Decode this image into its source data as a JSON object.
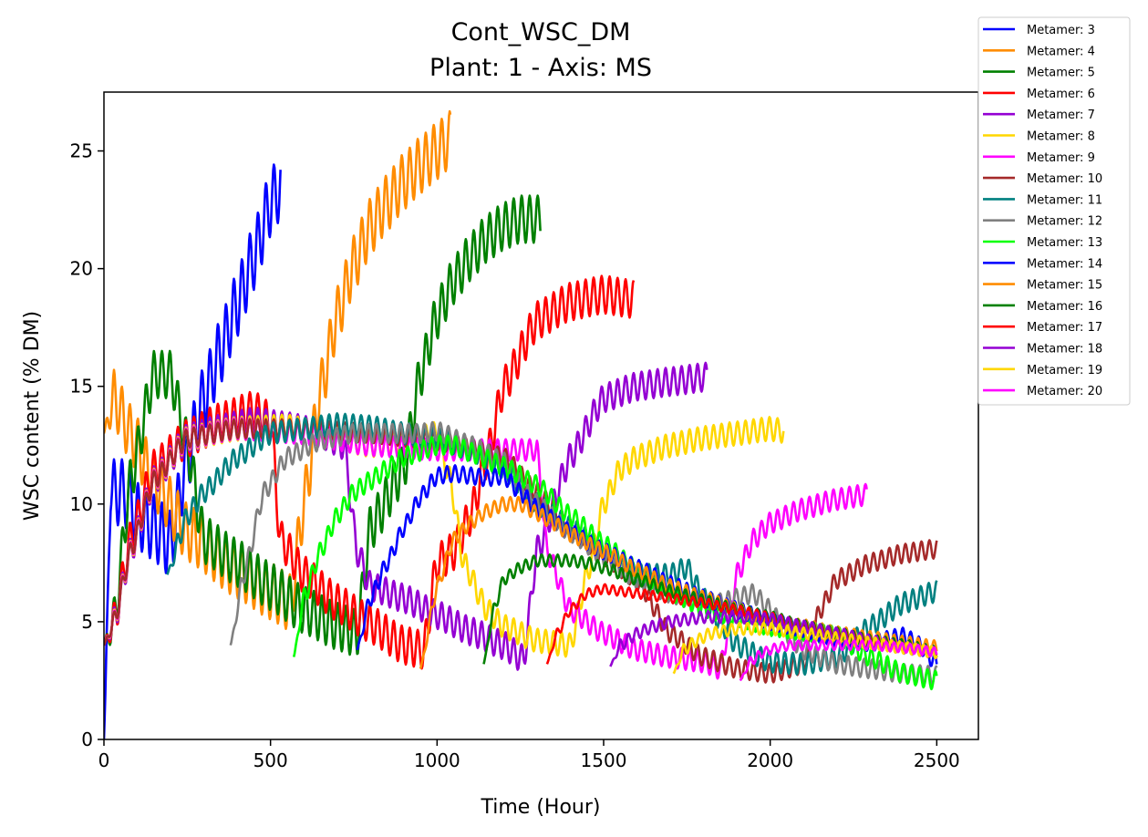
{
  "chart_data": {
    "type": "line",
    "title": "Cont_WSC_DM",
    "subtitle": "Plant: 1 - Axis: MS",
    "xlabel": "Time (Hour)",
    "ylabel": "WSC content (% DM)",
    "xlim": [
      0,
      2625
    ],
    "ylim": [
      0,
      27.5
    ],
    "xticks": [
      0,
      500,
      1000,
      1500,
      2000,
      2500
    ],
    "yticks": [
      0,
      5,
      10,
      15,
      20,
      25
    ],
    "grid": false,
    "legend_position": "outside top-right",
    "series": [
      {
        "name": "Metamer: 3",
        "color": "#0000ff",
        "x": [
          0,
          20,
          60,
          100,
          150,
          200,
          250,
          300,
          350,
          400,
          450,
          500,
          530
        ],
        "y": [
          0,
          10.5,
          10.5,
          9.5,
          9,
          8.3,
          12,
          14.5,
          16.5,
          18.5,
          20.5,
          22.8,
          23.5
        ],
        "amp": 1.4
      },
      {
        "name": "Metamer: 4",
        "color": "#ff8c00",
        "x": [
          0,
          30,
          80,
          150,
          250,
          400,
          500,
          560,
          600,
          650,
          700,
          750,
          800,
          850,
          900,
          950,
          1000,
          1040
        ],
        "y": [
          13,
          14.5,
          13,
          11,
          8.8,
          7.2,
          6.3,
          5.8,
          10,
          14.8,
          18,
          20.2,
          21.8,
          22.8,
          23.7,
          24.4,
          25,
          25.5
        ],
        "amp": 1.2
      },
      {
        "name": "Metamer: 5",
        "color": "#008000",
        "x": [
          0,
          30,
          80,
          150,
          200,
          250,
          300,
          400,
          500,
          600,
          700,
          760,
          800,
          900,
          950,
          1000,
          1050,
          1100,
          1150,
          1200,
          1250,
          1310
        ],
        "y": [
          4,
          5,
          11,
          15.5,
          15.5,
          12.5,
          8.5,
          7.5,
          6.5,
          5.5,
          4.8,
          4.5,
          9,
          11.5,
          15.5,
          18,
          19.5,
          20.5,
          21.3,
          21.8,
          22.1,
          22.1
        ],
        "amp": 1.0
      },
      {
        "name": "Metamer: 6",
        "color": "#ff0000",
        "x": [
          0,
          30,
          80,
          150,
          250,
          350,
          450,
          500,
          530,
          600,
          700,
          800,
          900,
          960,
          1000,
          1050,
          1100,
          1150,
          1200,
          1300,
          1400,
          1500,
          1590
        ],
        "y": [
          4,
          5,
          8.5,
          11.5,
          12.8,
          13.5,
          14,
          13.5,
          8.5,
          7,
          5.8,
          4.9,
          4,
          3.8,
          7.5,
          8,
          9.5,
          12,
          15,
          17.8,
          18.6,
          18.9,
          18.7
        ],
        "amp": 0.8
      },
      {
        "name": "Metamer: 7",
        "color": "#9400d3",
        "x": [
          0,
          30,
          80,
          150,
          250,
          350,
          450,
          550,
          650,
          720,
          760,
          800,
          900,
          1000,
          1100,
          1200,
          1260,
          1300,
          1400,
          1500,
          1600,
          1700,
          1810
        ],
        "y": [
          4,
          5,
          8,
          11,
          12.8,
          13.2,
          13.5,
          13.3,
          13,
          12.5,
          8,
          6.5,
          6,
          5.3,
          4.6,
          4,
          3.4,
          8,
          12,
          14.5,
          15,
          15.2,
          15.4
        ],
        "amp": 0.6
      },
      {
        "name": "Metamer: 8",
        "color": "#ffd700",
        "x": [
          0,
          30,
          80,
          150,
          250,
          400,
          550,
          700,
          800,
          900,
          1000,
          1040,
          1080,
          1150,
          1200,
          1300,
          1400,
          1450,
          1500,
          1550,
          1600,
          1700,
          1800,
          1900,
          2000,
          2040
        ],
        "y": [
          4,
          5,
          8,
          11,
          12.8,
          13.2,
          13.3,
          12.8,
          12.5,
          12.6,
          13,
          11,
          7.5,
          5.5,
          4.8,
          4.2,
          4,
          7,
          10,
          11.5,
          12,
          12.5,
          12.8,
          13,
          13.2,
          13.1
        ],
        "amp": 0.5
      },
      {
        "name": "Metamer: 9",
        "color": "#ff00ff",
        "x": [
          0,
          30,
          80,
          150,
          250,
          400,
          600,
          800,
          1000,
          1200,
          1300,
          1330,
          1400,
          1500,
          1600,
          1700,
          1800,
          1850,
          1900,
          1950,
          2000,
          2100,
          2200,
          2290
        ],
        "y": [
          4,
          5,
          8,
          11,
          12.8,
          13.2,
          13,
          12.5,
          12.3,
          12.3,
          12.3,
          8,
          5.5,
          4.5,
          3.8,
          3.5,
          3.3,
          3,
          7,
          8.5,
          9.2,
          9.8,
          10.2,
          10.4
        ],
        "amp": 0.45
      },
      {
        "name": "Metamer: 10",
        "color": "#a52a2a",
        "x": [
          0,
          30,
          80,
          150,
          250,
          400,
          600,
          800,
          1000,
          1200,
          1300,
          1400,
          1500,
          1600,
          1700,
          1800,
          1900,
          2000,
          2100,
          2150,
          2200,
          2300,
          2400,
          2500
        ],
        "y": [
          4,
          5,
          8,
          11,
          12.8,
          13.2,
          13.2,
          13,
          12.7,
          12,
          10.5,
          9,
          7.8,
          6.8,
          4.5,
          3.5,
          3,
          2.8,
          3.2,
          5.5,
          6.8,
          7.5,
          7.9,
          8.1
        ],
        "amp": 0.4
      },
      {
        "name": "Metamer: 11",
        "color": "#008080",
        "x": [
          190,
          250,
          300,
          400,
          500,
          600,
          700,
          800,
          900,
          1000,
          1100,
          1200,
          1300,
          1400,
          1500,
          1600,
          1700,
          1750,
          1800,
          1850,
          1900,
          2000,
          2100,
          2200,
          2300,
          2400,
          2500
        ],
        "y": [
          7,
          9.5,
          10.5,
          12,
          13,
          13.2,
          13.4,
          13.3,
          13,
          12.8,
          12.3,
          11.5,
          10,
          9,
          8,
          7,
          7,
          7.3,
          6,
          5,
          4,
          3.3,
          3.2,
          3.5,
          4.8,
          5.8,
          6.3
        ],
        "amp": 0.45
      },
      {
        "name": "Metamer: 12",
        "color": "#808080",
        "x": [
          380,
          420,
          480,
          550,
          650,
          750,
          850,
          950,
          1000,
          1100,
          1200,
          1300,
          1400,
          1500,
          1600,
          1700,
          1800,
          1850,
          1900,
          1950,
          2000,
          2050,
          2100,
          2200,
          2300,
          2400,
          2500
        ],
        "y": [
          4,
          7,
          10.5,
          12,
          12.7,
          13,
          13,
          13,
          13.1,
          12.5,
          11.8,
          10,
          8.8,
          7.8,
          6.8,
          6.2,
          5.8,
          5.8,
          6,
          6.2,
          5.5,
          4.5,
          3.8,
          3.2,
          3,
          2.8,
          2.7
        ],
        "amp": 0.4
      },
      {
        "name": "Metamer: 13",
        "color": "#00ff00",
        "x": [
          570,
          600,
          650,
          700,
          750,
          800,
          850,
          900,
          1000,
          1050,
          1100,
          1200,
          1300,
          1400,
          1500,
          1600,
          1700,
          1800,
          1900,
          2000,
          2100,
          2200,
          2300,
          2400,
          2500
        ],
        "y": [
          3.5,
          6,
          8,
          9.5,
          10.5,
          11,
          11.5,
          12,
          12.5,
          12.5,
          12.2,
          11.6,
          10.8,
          9.5,
          8.3,
          7.2,
          6.3,
          5.6,
          5.2,
          4.8,
          4.6,
          4.4,
          3.5,
          2.8,
          2.5
        ],
        "amp": 0.4
      },
      {
        "name": "Metamer: 14",
        "color": "#0000ff",
        "x": [
          760,
          800,
          850,
          900,
          950,
          1000,
          1050,
          1100,
          1150,
          1200,
          1250,
          1300,
          1400,
          1500,
          1600,
          1700,
          1800,
          1900,
          2000,
          2100,
          2200,
          2300,
          2400,
          2450,
          2500
        ],
        "y": [
          3.8,
          6,
          7.5,
          9,
          10.3,
          11.2,
          11.3,
          11.2,
          11.1,
          11.2,
          10.5,
          9.8,
          8.8,
          8,
          7.3,
          6.6,
          6,
          5.5,
          5,
          4.7,
          4.3,
          4.1,
          4.4,
          4,
          3.2
        ],
        "amp": 0.35
      },
      {
        "name": "Metamer: 15",
        "color": "#ff8c00",
        "x": [
          950,
          1000,
          1050,
          1100,
          1150,
          1200,
          1250,
          1300,
          1350,
          1400,
          1500,
          1600,
          1700,
          1800,
          1900,
          2000,
          2100,
          2200,
          2300,
          2400,
          2500
        ],
        "y": [
          3,
          6.5,
          8.5,
          9.2,
          9.7,
          10,
          10,
          9.6,
          9.2,
          8.7,
          8,
          7.2,
          6.5,
          6,
          5.5,
          5,
          4.8,
          4.5,
          4.3,
          4.1,
          3.9
        ],
        "amp": 0.3
      },
      {
        "name": "Metamer: 16",
        "color": "#008000",
        "x": [
          1140,
          1170,
          1200,
          1250,
          1300,
          1350,
          1400,
          1450,
          1500,
          1600,
          1700,
          1800,
          1900,
          2000,
          2100,
          2200,
          2300,
          2400,
          2500
        ],
        "y": [
          3.2,
          5.5,
          6.8,
          7.3,
          7.6,
          7.6,
          7.6,
          7.5,
          7.3,
          6.8,
          6.3,
          5.9,
          5.5,
          5.2,
          4.8,
          4.5,
          4.2,
          4,
          3.7
        ],
        "amp": 0.25
      },
      {
        "name": "Metamer: 17",
        "color": "#ff0000",
        "x": [
          1330,
          1360,
          1400,
          1450,
          1500,
          1550,
          1600,
          1700,
          1800,
          1900,
          2000,
          2100,
          2200,
          2300,
          2400,
          2500
        ],
        "y": [
          3.2,
          4.5,
          5.5,
          6.2,
          6.4,
          6.3,
          6.2,
          6,
          5.8,
          5.5,
          5.2,
          4.8,
          4.5,
          4.2,
          3.9,
          3.7
        ],
        "amp": 0.2
      },
      {
        "name": "Metamer: 18",
        "color": "#9400d3",
        "x": [
          1520,
          1550,
          1600,
          1650,
          1700,
          1750,
          1800,
          1850,
          1900,
          2000,
          2100,
          2200,
          2300,
          2400,
          2500
        ],
        "y": [
          3.1,
          4,
          4.5,
          4.8,
          5,
          5.1,
          5.2,
          5.2,
          5.2,
          5.1,
          4.8,
          4.5,
          4.2,
          3.9,
          3.7
        ],
        "amp": 0.25
      },
      {
        "name": "Metamer: 19",
        "color": "#ffd700",
        "x": [
          1710,
          1740,
          1780,
          1820,
          1860,
          1900,
          1950,
          2000,
          2100,
          2200,
          2300,
          2400,
          2500
        ],
        "y": [
          2.8,
          3.8,
          4.2,
          4.5,
          4.6,
          4.7,
          4.7,
          4.7,
          4.5,
          4.3,
          4.1,
          3.9,
          3.7
        ],
        "amp": 0.25
      },
      {
        "name": "Metamer: 20",
        "color": "#ff00ff",
        "x": [
          1910,
          1940,
          1980,
          2020,
          2060,
          2100,
          2200,
          2300,
          2400,
          2500
        ],
        "y": [
          2.5,
          3.3,
          3.7,
          3.9,
          4,
          4,
          4,
          4,
          3.9,
          3.7
        ],
        "amp": 0.2
      }
    ]
  }
}
